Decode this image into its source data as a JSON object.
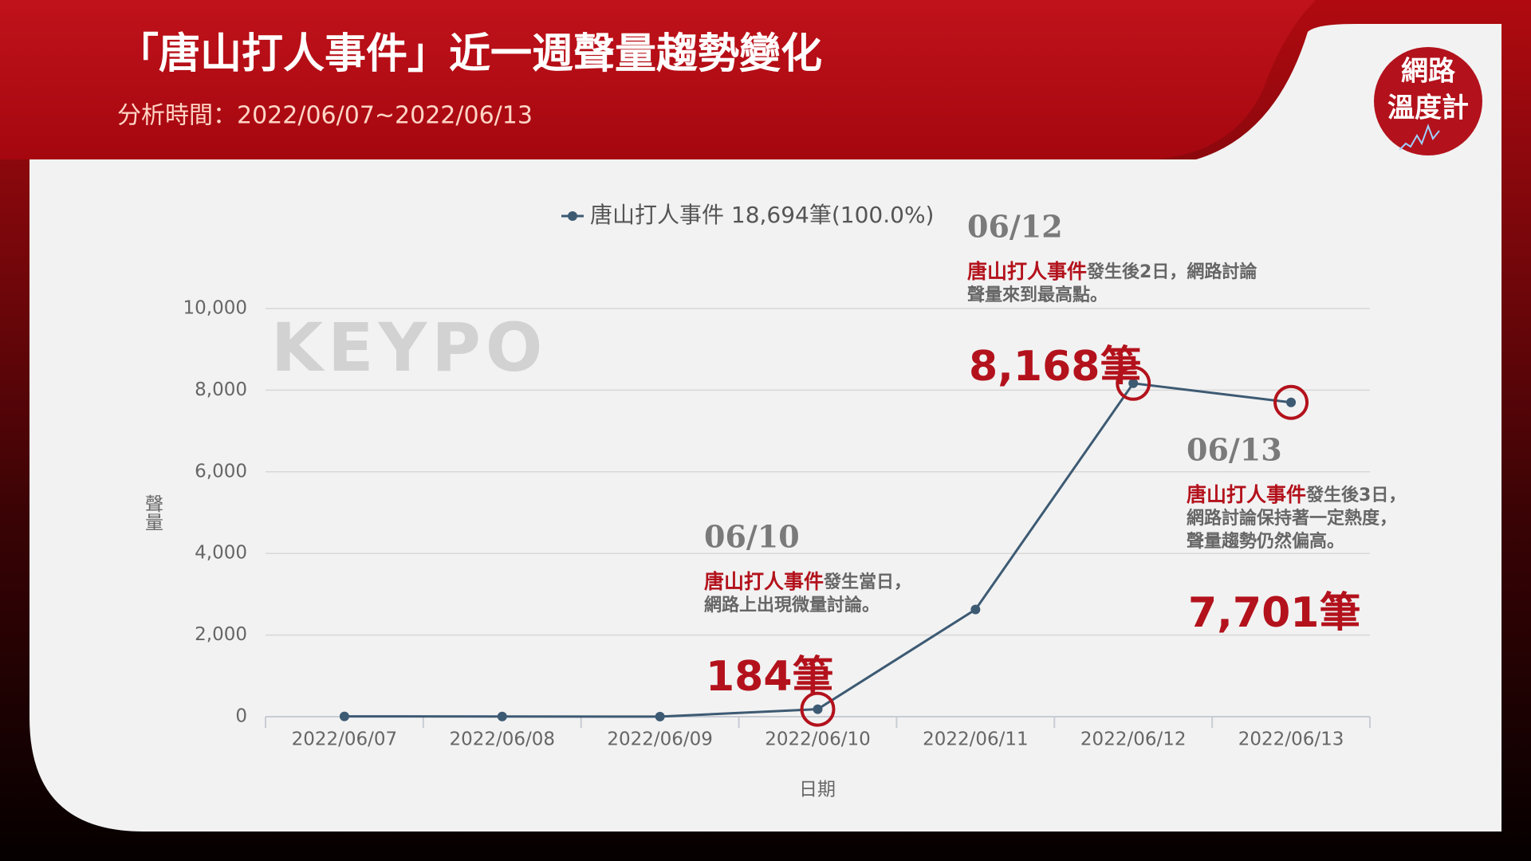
{
  "chart_data": {
    "type": "line",
    "title": "「唐山打人事件」近一週聲量趨勢變化",
    "subtitle": "分析時間：2022/06/07~2022/06/13",
    "logo": [
      "網路",
      "溫度計"
    ],
    "watermark": "KEYPO",
    "x_label": "日期",
    "y_label": "聲量",
    "categories": [
      "2022/06/07",
      "2022/06/08",
      "2022/06/09",
      "2022/06/10",
      "2022/06/11",
      "2022/06/12",
      "2022/06/13"
    ],
    "series": [
      {
        "name": "唐山打人事件 18,694筆(100.0%)",
        "color": "#3d5a73",
        "values": [
          8,
          5,
          2,
          184,
          2626,
          8168,
          7701
        ],
        "value_labels": [
          null,
          null,
          null,
          "184筆",
          null,
          "8,168筆",
          "7,701筆"
        ]
      }
    ],
    "ylim": [
      0,
      10000
    ],
    "yticks": [
      0,
      {
        "value": 2000,
        "label": "2,000"
      },
      {
        "value": 4000,
        "label": "4,000"
      },
      {
        "value": 6000,
        "label": "6,000"
      },
      {
        "value": 8000,
        "label": "8,000"
      },
      {
        "value": 10000,
        "label": "10,000"
      }
    ],
    "grid": true,
    "highlight_color": "#b3121c",
    "annotations": [
      {
        "date": "06/10",
        "highlight": "唐山打人事件",
        "lines": [
          "發生當日，",
          "網路上出現微量討論。"
        ]
      },
      {
        "date": "06/12",
        "highlight": "唐山打人事件",
        "lines": [
          "發生後2日，網路討論",
          "聲量來到最高點。"
        ]
      },
      {
        "date": "06/13",
        "highlight": "唐山打人事件",
        "lines": [
          "發生後3日，",
          "網路討論保持著一定熱度，",
          "聲量趨勢仍然偏高。"
        ]
      }
    ]
  }
}
